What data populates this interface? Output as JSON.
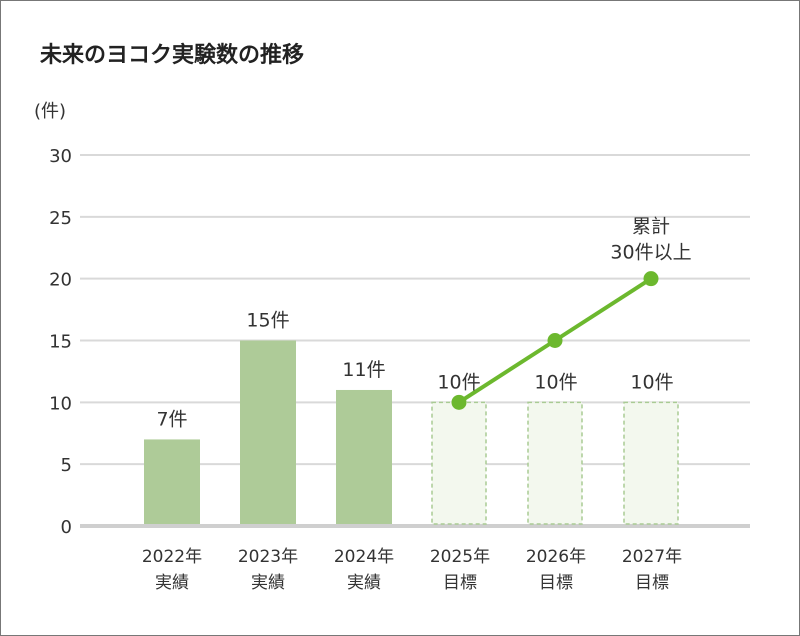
{
  "chart_data": {
    "type": "bar",
    "title": "未来のヨコク実験数の推移",
    "ylabel": "(件)",
    "ylim": [
      0,
      30
    ],
    "yticks": [
      0,
      5,
      10,
      15,
      20,
      25,
      30
    ],
    "grid": true,
    "categories": [
      {
        "year": "2022年",
        "kind": "実績"
      },
      {
        "year": "2023年",
        "kind": "実績"
      },
      {
        "year": "2024年",
        "kind": "実績"
      },
      {
        "year": "2025年",
        "kind": "目標"
      },
      {
        "year": "2026年",
        "kind": "目標"
      },
      {
        "year": "2027年",
        "kind": "目標"
      }
    ],
    "bars": {
      "values": [
        7,
        15,
        11,
        10,
        10,
        10
      ],
      "labels": [
        "7件",
        "15件",
        "11件",
        "10件",
        "10件",
        "10件"
      ],
      "style": [
        "solid",
        "solid",
        "solid",
        "dashed",
        "dashed",
        "dashed"
      ]
    },
    "line": {
      "categories_index": [
        3,
        4,
        5
      ],
      "values": [
        10,
        15,
        20
      ],
      "annotation": [
        "累計",
        "30件以上"
      ]
    },
    "colors": {
      "bar_actual": "#aecb98",
      "bar_target_fill": "#f3f8ee",
      "bar_target_border": "#a9cb94",
      "line": "#6cb82e",
      "grid": "#d9d9d9",
      "axis": "#cfcfcf"
    }
  }
}
